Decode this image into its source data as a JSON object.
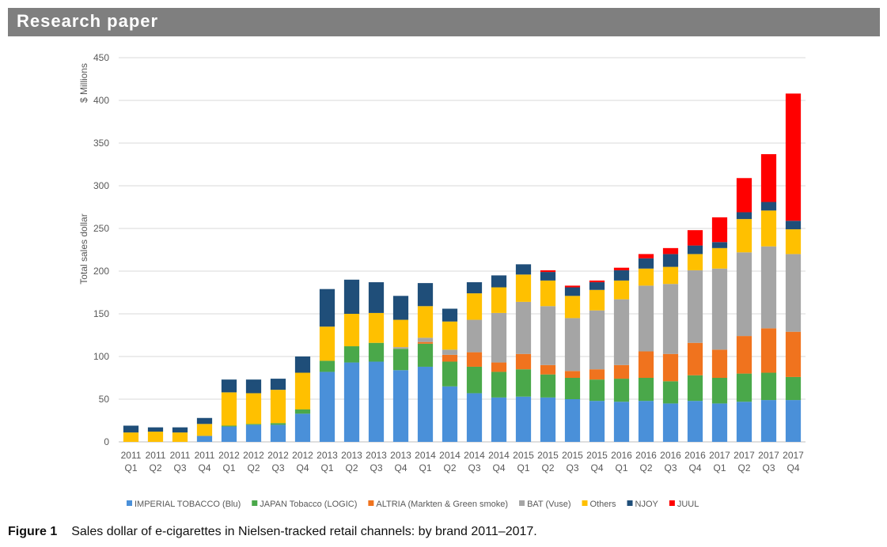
{
  "header": {
    "title": "Research paper"
  },
  "caption": {
    "label": "Figure 1",
    "text": "Sales dollar of e-cigarettes in Nielsen-tracked retail channels: by brand 2011–2017."
  },
  "chart_data": {
    "type": "bar",
    "stacked": true,
    "ylabel": "Total sales dollar",
    "yunit": "$ Millions",
    "ylim": [
      0,
      450
    ],
    "yticks": [
      0,
      50,
      100,
      150,
      200,
      250,
      300,
      350,
      400,
      450
    ],
    "grid": true,
    "legend_position": "bottom",
    "categories": [
      [
        "2011",
        "Q1"
      ],
      [
        "2011",
        "Q2"
      ],
      [
        "2011",
        "Q3"
      ],
      [
        "2011",
        "Q4"
      ],
      [
        "2012",
        "Q1"
      ],
      [
        "2012",
        "Q2"
      ],
      [
        "2012",
        "Q3"
      ],
      [
        "2012",
        "Q4"
      ],
      [
        "2013",
        "Q1"
      ],
      [
        "2013",
        "Q2"
      ],
      [
        "2013",
        "Q3"
      ],
      [
        "2013",
        "Q4"
      ],
      [
        "2014",
        "Q1"
      ],
      [
        "2014",
        "Q2"
      ],
      [
        "2014",
        "Q3"
      ],
      [
        "2014",
        "Q4"
      ],
      [
        "2015",
        "Q1"
      ],
      [
        "2015",
        "Q2"
      ],
      [
        "2015",
        "Q3"
      ],
      [
        "2015",
        "Q4"
      ],
      [
        "2016",
        "Q1"
      ],
      [
        "2016",
        "Q2"
      ],
      [
        "2016",
        "Q3"
      ],
      [
        "2016",
        "Q4"
      ],
      [
        "2017",
        "Q1"
      ],
      [
        "2017",
        "Q2"
      ],
      [
        "2017",
        "Q3"
      ],
      [
        "2017",
        "Q4"
      ]
    ],
    "series": [
      {
        "name": "IMPERIAL TOBACCO (Blu)",
        "color": "#4a90d9",
        "values": [
          0,
          0,
          0,
          7,
          18,
          20,
          20,
          33,
          82,
          93,
          94,
          84,
          88,
          65,
          57,
          52,
          53,
          52,
          50,
          48,
          47,
          48,
          45,
          48,
          45,
          47,
          49,
          49
        ]
      },
      {
        "name": "JAPAN Tobacco (LOGIC)",
        "color": "#4aa84a",
        "values": [
          0,
          0,
          0,
          0,
          1,
          1,
          2,
          5,
          13,
          19,
          22,
          25,
          27,
          29,
          31,
          30,
          32,
          27,
          25,
          25,
          27,
          27,
          26,
          30,
          30,
          33,
          32,
          27
        ]
      },
      {
        "name": "ALTRIA (Markten & Green smoke)",
        "color": "#f0731e",
        "values": [
          0,
          0,
          0,
          0,
          0,
          0,
          0,
          0,
          0,
          0,
          0,
          0,
          2,
          8,
          17,
          11,
          18,
          11,
          8,
          12,
          16,
          31,
          32,
          38,
          33,
          44,
          52,
          53
        ]
      },
      {
        "name": "BAT (Vuse)",
        "color": "#a5a5a5",
        "values": [
          0,
          0,
          0,
          0,
          0,
          0,
          0,
          0,
          0,
          0,
          0,
          2,
          5,
          6,
          38,
          58,
          61,
          69,
          62,
          69,
          77,
          77,
          82,
          85,
          95,
          98,
          96,
          91
        ]
      },
      {
        "name": "Others",
        "color": "#ffc000",
        "values": [
          11,
          12,
          11,
          14,
          39,
          36,
          39,
          43,
          40,
          38,
          35,
          32,
          37,
          33,
          31,
          30,
          32,
          30,
          26,
          24,
          22,
          20,
          20,
          19,
          24,
          39,
          42,
          29
        ]
      },
      {
        "name": "NJOY",
        "color": "#1f4e79",
        "values": [
          8,
          5,
          6,
          7,
          15,
          16,
          13,
          19,
          44,
          40,
          36,
          28,
          27,
          15,
          13,
          14,
          12,
          10,
          10,
          9,
          12,
          12,
          15,
          10,
          7,
          8,
          10,
          10
        ]
      },
      {
        "name": "JUUL",
        "color": "#ff0000",
        "values": [
          0,
          0,
          0,
          0,
          0,
          0,
          0,
          0,
          0,
          0,
          0,
          0,
          0,
          0,
          0,
          0,
          0,
          2,
          2,
          2,
          3,
          5,
          7,
          18,
          29,
          40,
          56,
          149
        ]
      }
    ]
  }
}
